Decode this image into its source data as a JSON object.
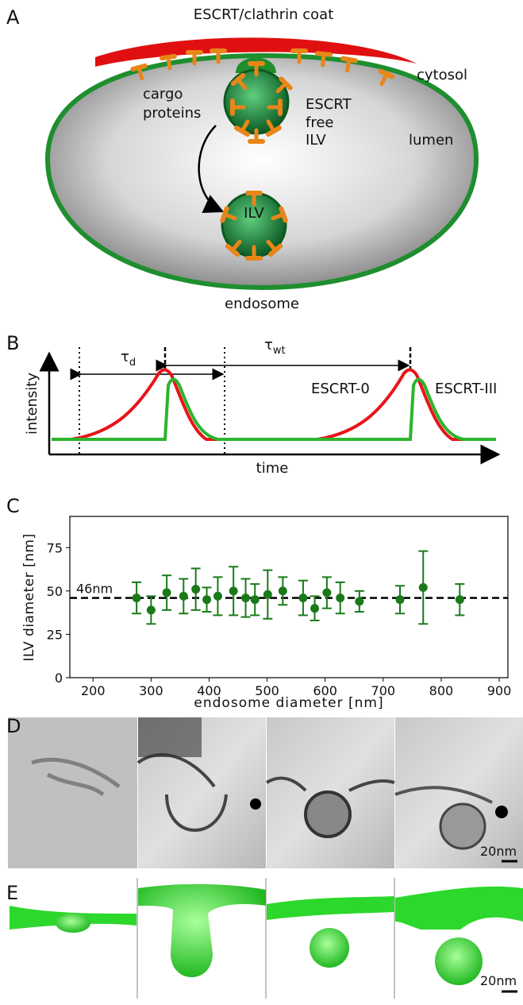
{
  "panel_labels": [
    "A",
    "B",
    "C",
    "D",
    "E"
  ],
  "diagram_a": {
    "coat": "ESCRT/clathrin coat",
    "cytosol": "cytosol",
    "cargo": [
      "cargo",
      "proteins"
    ],
    "free_ilv": [
      "ESCRT",
      "free",
      "ILV"
    ],
    "lumen": "lumen",
    "ilv": "ILV",
    "endosome": "endosome"
  },
  "diagram_b": {
    "y_label": "intensity",
    "x_label": "time",
    "tau_d": {
      "symbol": "τ",
      "subscript": "d"
    },
    "tau_wt": {
      "symbol": "τ",
      "subscript": "wt"
    },
    "series": [
      {
        "name": "ESCRT-0",
        "color": "#e8141a"
      },
      {
        "name": "ESCRT-III",
        "color": "#2bb52b"
      }
    ]
  },
  "chart_data": {
    "type": "scatter",
    "x_label": "endosome diameter [nm]",
    "y_label": "ILV diameter [nm]",
    "x": [
      275,
      300,
      327,
      356,
      377,
      396,
      415,
      442,
      463,
      479,
      501,
      527,
      562,
      582,
      603,
      626,
      659,
      729,
      769,
      832
    ],
    "values": [
      46,
      39,
      49,
      47,
      51,
      45,
      47,
      50,
      46,
      45,
      48,
      50,
      46,
      40,
      49,
      46,
      44,
      45,
      52,
      45
    ],
    "errors": [
      9,
      8,
      10,
      10,
      12,
      7,
      11,
      14,
      11,
      9,
      14,
      8,
      10,
      7,
      9,
      9,
      6,
      8,
      21,
      9
    ],
    "color": "#1a7a1a",
    "reference_line": {
      "value": 46,
      "label": "46nm"
    },
    "xlim": [
      160,
      915
    ],
    "ylim": [
      0,
      93
    ],
    "xticks": [
      200,
      300,
      400,
      500,
      600,
      700,
      800,
      900
    ],
    "yticks": [
      0,
      25,
      50,
      75
    ]
  },
  "micrographs": {
    "scale_bar": "20nm"
  },
  "renders": {
    "scale_bar": "20nm"
  }
}
